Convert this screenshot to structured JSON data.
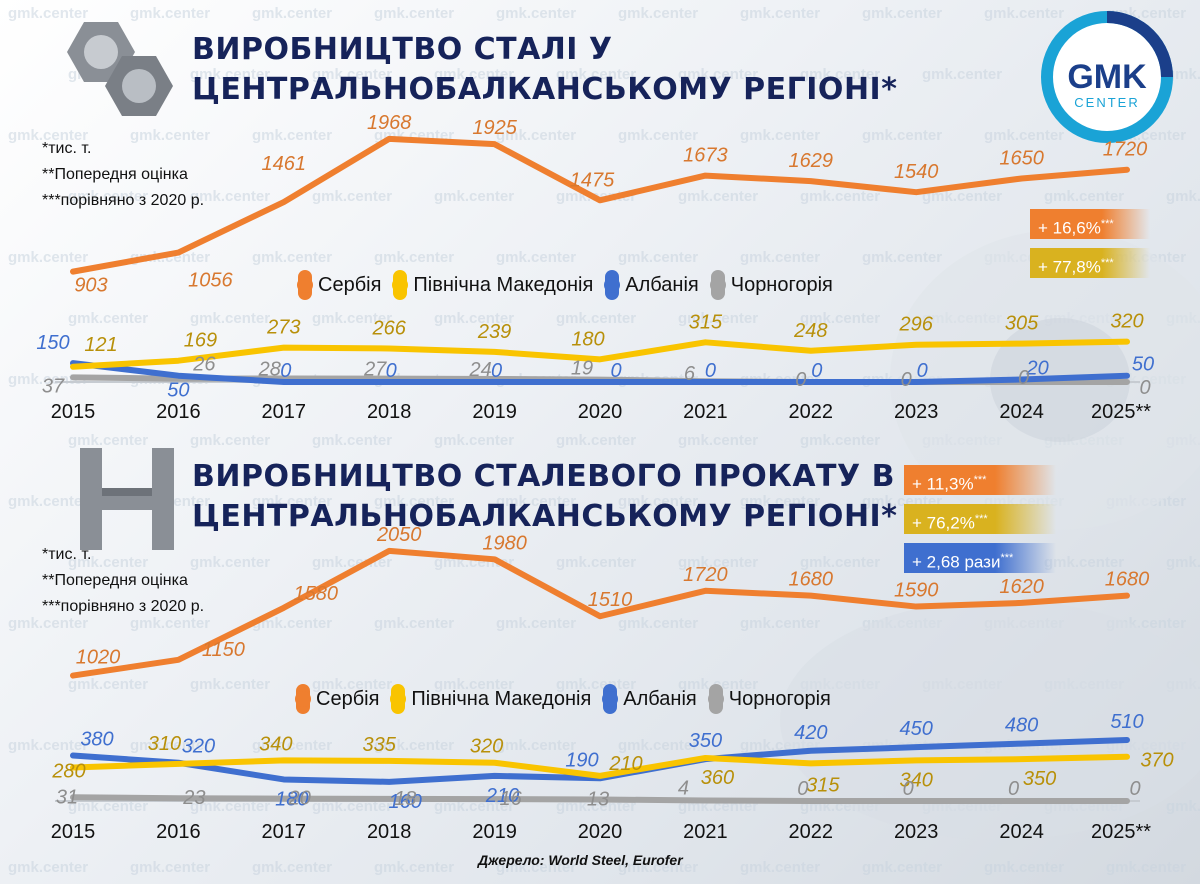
{
  "watermark": "gmk.center",
  "logo": {
    "line1": "GMK",
    "line2": "CENTER"
  },
  "colors": {
    "serbia": "#ef7f2f",
    "north_macedonia": "#f9c400",
    "albania": "#3f6fcf",
    "montenegro": "#a4a4a4",
    "title": "#16235a",
    "albania_label": "#3f6fcf"
  },
  "icons": {
    "top": "hex-nuts-icon",
    "bottom": "i-beam-icon"
  },
  "source": "Джерело: World Steel, Eurofer",
  "chart_data": [
    {
      "type": "line",
      "title_line1": "ВИРОБНИЦТВО СТАЛІ У",
      "title_line2": "ЦЕНТРАЛЬНОБАЛКАНСЬКОМУ РЕГІОНІ*",
      "notes": [
        "*тис. т.",
        "**Попередня оцінка",
        "***порівняно з 2020 р."
      ],
      "categories": [
        "2015",
        "2016",
        "2017",
        "2018",
        "2019",
        "2020",
        "2021",
        "2022",
        "2023",
        "2024",
        "2025**"
      ],
      "legend": [
        "Сербія",
        "Північна Македонія",
        "Албанія",
        "Чорногорія"
      ],
      "series": [
        {
          "name": "Сербія",
          "values": [
            903,
            1056,
            1461,
            1968,
            1925,
            1475,
            1673,
            1629,
            1540,
            1650,
            1720
          ]
        },
        {
          "name": "Північна Македонія",
          "values": [
            121,
            169,
            273,
            266,
            239,
            180,
            315,
            248,
            296,
            305,
            320
          ]
        },
        {
          "name": "Албанія",
          "values": [
            150,
            50,
            0,
            0,
            0,
            0,
            0,
            0,
            0,
            20,
            50
          ]
        },
        {
          "name": "Чорногорія",
          "values": [
            37,
            26,
            28,
            27,
            24,
            19,
            6,
            0,
            0,
            0,
            0
          ]
        }
      ],
      "badges": [
        {
          "text": "+ 16,6%",
          "sup": "***",
          "series": "Сербія"
        },
        {
          "text": "+ 77,8%",
          "sup": "***",
          "series": "Північна Македонія"
        }
      ]
    },
    {
      "type": "line",
      "title_line1": "ВИРОБНИЦТВО СТАЛЕВОГО ПРОКАТУ В",
      "title_line2": "ЦЕНТРАЛЬНОБАЛКАНСЬКОМУ РЕГІОНІ*",
      "notes": [
        "*тис. т.",
        "**Попередня оцінка",
        "***порівняно з 2020 р."
      ],
      "categories": [
        "2015",
        "2016",
        "2017",
        "2018",
        "2019",
        "2020",
        "2021",
        "2022",
        "2023",
        "2024",
        "2025**"
      ],
      "legend": [
        "Сербія",
        "Північна Македонія",
        "Албанія",
        "Чорногорія"
      ],
      "series": [
        {
          "name": "Сербія",
          "values": [
            1020,
            1150,
            1580,
            2050,
            1980,
            1510,
            1720,
            1680,
            1590,
            1620,
            1680
          ]
        },
        {
          "name": "Північна Македонія",
          "values": [
            280,
            310,
            340,
            335,
            320,
            210,
            360,
            315,
            340,
            350,
            370
          ]
        },
        {
          "name": "Албанія",
          "values": [
            380,
            320,
            180,
            160,
            210,
            190,
            350,
            420,
            450,
            480,
            510
          ]
        },
        {
          "name": "Чорногорія",
          "values": [
            31,
            23,
            20,
            18,
            16,
            13,
            4,
            0,
            0,
            0,
            0
          ]
        }
      ],
      "badges": [
        {
          "text": "+ 11,3%",
          "sup": "***",
          "series": "Сербія"
        },
        {
          "text": "+ 76,2%",
          "sup": "***",
          "series": "Північна Македонія"
        },
        {
          "text": "+ 2,68 рази",
          "sup": "***",
          "series": "Албанія"
        }
      ]
    }
  ]
}
